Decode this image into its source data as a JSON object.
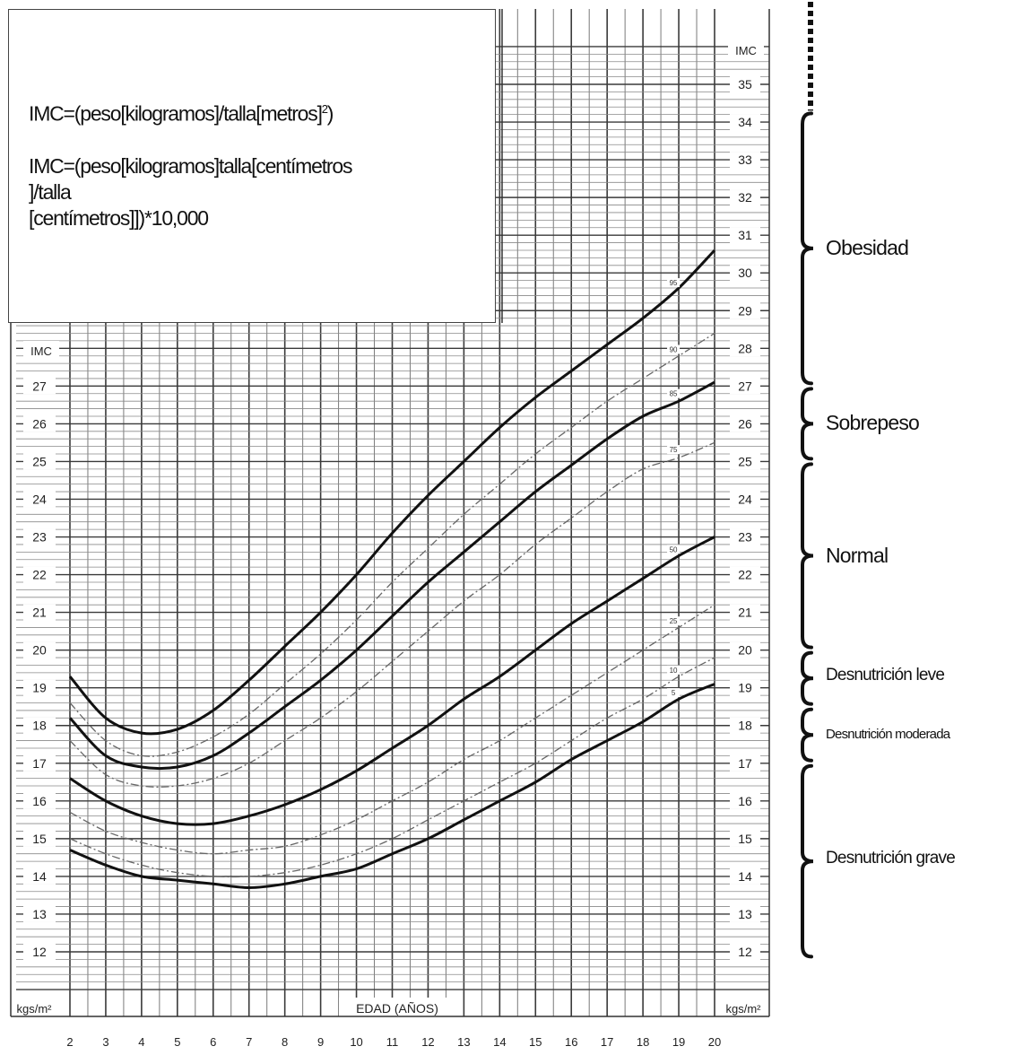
{
  "formulas": {
    "line1_main": "IMC=(peso[kilogramos]/talla[metros]",
    "line1_sup": "2",
    "line1_end": ")",
    "line2a": "IMC=(peso[kilogramos]talla[centímetros",
    "line2b": "]/talla",
    "line2c": "[centímetros]])*10,000"
  },
  "categories": [
    {
      "label": "Obesidad",
      "min": 27,
      "max": 34.3
    },
    {
      "label": "Sobrepeso",
      "min": 25,
      "max": 27
    },
    {
      "label": "Normal",
      "min": 20,
      "max": 25
    },
    {
      "label": "Desnutrición leve",
      "min": 18.5,
      "max": 20
    },
    {
      "label": "Desnutrición moderada",
      "min": 17,
      "max": 18.5
    },
    {
      "label": "Desnutrición grave",
      "min": 11.8,
      "max": 17
    }
  ],
  "chart_data": {
    "type": "line",
    "xlabel": "EDAD (AÑOS)",
    "ylabel_left": "IMC",
    "ylabel_right": "IMC",
    "unit_left": "kgs/m²",
    "unit_right": "kgs/m²",
    "x_ticks": [
      "2",
      "3",
      "4",
      "5",
      "6",
      "7",
      "8",
      "9",
      "10",
      "11",
      "12",
      "13",
      "14",
      "15",
      "16",
      "17",
      "18",
      "19",
      "20"
    ],
    "y_ticks_left": [
      "12",
      "13",
      "14",
      "15",
      "16",
      "17",
      "18",
      "19",
      "20",
      "21",
      "22",
      "23",
      "24",
      "25",
      "26",
      "27"
    ],
    "y_ticks_right": [
      "12",
      "13",
      "14",
      "15",
      "16",
      "17",
      "18",
      "19",
      "20",
      "21",
      "22",
      "23",
      "24",
      "25",
      "26",
      "27",
      "28",
      "29",
      "30",
      "31",
      "32",
      "33",
      "34",
      "35"
    ],
    "xlim": [
      2,
      20
    ],
    "ylim": [
      11,
      36
    ],
    "x": [
      2,
      3,
      4,
      5,
      6,
      7,
      8,
      9,
      10,
      11,
      12,
      13,
      14,
      15,
      16,
      17,
      18,
      19,
      20
    ],
    "series": [
      {
        "name": "95",
        "style": "solid",
        "values": [
          19.3,
          18.2,
          17.8,
          17.9,
          18.4,
          19.2,
          20.1,
          21.0,
          22.0,
          23.1,
          24.1,
          25.0,
          25.9,
          26.7,
          27.4,
          28.1,
          28.8,
          29.6,
          30.6
        ]
      },
      {
        "name": "90",
        "style": "dashed",
        "values": [
          18.6,
          17.6,
          17.2,
          17.3,
          17.7,
          18.3,
          19.1,
          19.9,
          20.8,
          21.8,
          22.7,
          23.6,
          24.4,
          25.2,
          25.9,
          26.6,
          27.2,
          27.8,
          28.4
        ]
      },
      {
        "name": "85",
        "style": "solid",
        "values": [
          18.2,
          17.2,
          16.9,
          16.9,
          17.2,
          17.8,
          18.5,
          19.2,
          20.0,
          20.9,
          21.8,
          22.6,
          23.4,
          24.2,
          24.9,
          25.6,
          26.2,
          26.6,
          27.1
        ]
      },
      {
        "name": "75",
        "style": "dashed",
        "values": [
          17.6,
          16.7,
          16.4,
          16.4,
          16.6,
          17.0,
          17.6,
          18.2,
          18.9,
          19.7,
          20.5,
          21.3,
          22.0,
          22.8,
          23.5,
          24.2,
          24.8,
          25.1,
          25.5
        ]
      },
      {
        "name": "50",
        "style": "solid",
        "values": [
          16.6,
          16.0,
          15.6,
          15.4,
          15.4,
          15.6,
          15.9,
          16.3,
          16.8,
          17.4,
          18.0,
          18.7,
          19.3,
          20.0,
          20.7,
          21.3,
          21.9,
          22.5,
          23.0
        ]
      },
      {
        "name": "25",
        "style": "dashed",
        "values": [
          15.7,
          15.2,
          14.9,
          14.7,
          14.6,
          14.7,
          14.8,
          15.1,
          15.5,
          16.0,
          16.5,
          17.1,
          17.6,
          18.2,
          18.8,
          19.4,
          20.0,
          20.6,
          21.2
        ]
      },
      {
        "name": "10",
        "style": "dashed",
        "values": [
          15.0,
          14.6,
          14.3,
          14.1,
          14.0,
          14.0,
          14.1,
          14.3,
          14.6,
          15.0,
          15.5,
          16.0,
          16.5,
          17.0,
          17.6,
          18.2,
          18.7,
          19.3,
          19.8
        ]
      },
      {
        "name": "5",
        "style": "solid",
        "values": [
          14.7,
          14.3,
          14.0,
          13.9,
          13.8,
          13.7,
          13.8,
          14.0,
          14.2,
          14.6,
          15.0,
          15.5,
          16.0,
          16.5,
          17.1,
          17.6,
          18.1,
          18.7,
          19.1
        ]
      }
    ]
  }
}
